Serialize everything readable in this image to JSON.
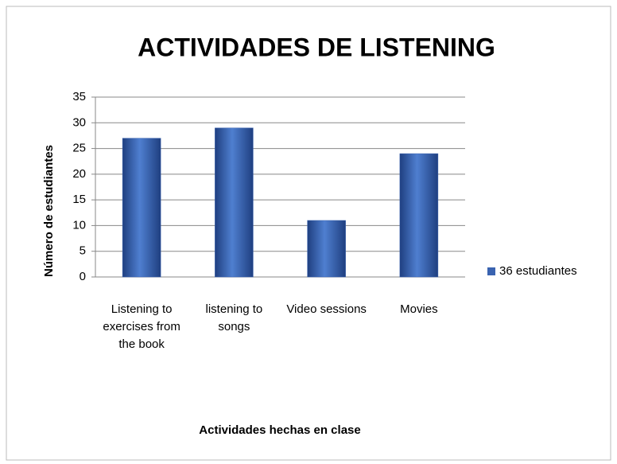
{
  "chart_data": {
    "type": "bar",
    "title": "ACTIVIDADES DE LISTENING",
    "x_label": "Actividades hechas en clase",
    "y_label": "Número de estudiantes",
    "categories": [
      "Listening to exercises from the book",
      "listening to songs",
      "Video sessions",
      "Movies"
    ],
    "series": [
      {
        "name": "36 estudiantes",
        "color": "#3a63b0",
        "values": [
          27,
          29,
          11,
          24
        ]
      }
    ],
    "ylim": [
      0,
      35
    ],
    "yticks": [
      0,
      5,
      10,
      15,
      20,
      25,
      30,
      35
    ],
    "grid": true,
    "legend": "right"
  }
}
